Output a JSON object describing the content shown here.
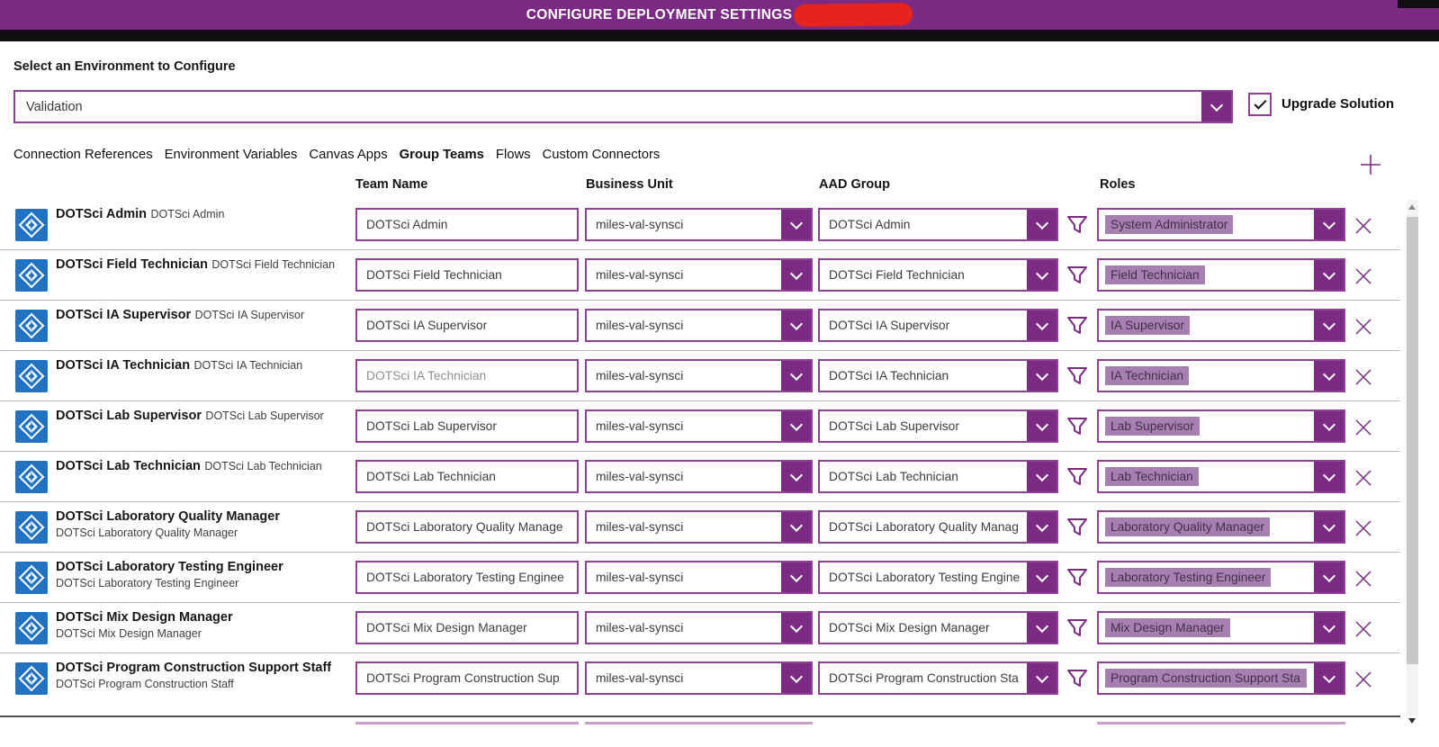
{
  "titlebar": {
    "title": "CONFIGURE DEPLOYMENT SETTINGS"
  },
  "environment": {
    "label": "Select an Environment to Configure",
    "value": "Validation",
    "upgrade_label": "Upgrade Solution",
    "upgrade_checked": true
  },
  "tabs": [
    {
      "label": "Connection References",
      "active": false
    },
    {
      "label": "Environment Variables",
      "active": false
    },
    {
      "label": "Canvas Apps",
      "active": false
    },
    {
      "label": "Group Teams",
      "active": true
    },
    {
      "label": "Flows",
      "active": false
    },
    {
      "label": "Custom Connectors",
      "active": false
    }
  ],
  "table": {
    "columns": {
      "team_name": "Team Name",
      "business_unit": "Business Unit",
      "aad_group": "AAD Group",
      "roles": "Roles"
    },
    "rows": [
      {
        "title": "DOTSci Admin",
        "subtitle": "DOTSci Admin",
        "team_name": "DOTSci Admin",
        "business_unit": "miles-val-synsci",
        "aad_group": "DOTSci Admin",
        "role": "System Administrator",
        "team_muted": false,
        "role_full": false
      },
      {
        "title": "DOTSci Field Technician",
        "subtitle": "DOTSci Field Technician",
        "team_name": "DOTSci Field Technician",
        "business_unit": "miles-val-synsci",
        "aad_group": "DOTSci Field Technician",
        "role": "Field Technician",
        "team_muted": false,
        "role_full": false
      },
      {
        "title": "DOTSci IA Supervisor",
        "subtitle": "DOTSci IA Supervisor",
        "team_name": "DOTSci IA Supervisor",
        "business_unit": "miles-val-synsci",
        "aad_group": "DOTSci IA Supervisor",
        "role": "IA Supervisor",
        "team_muted": false,
        "role_full": false
      },
      {
        "title": "DOTSci IA Technician",
        "subtitle": "DOTSci IA Technician",
        "team_name": "DOTSci IA Technician",
        "business_unit": "miles-val-synsci",
        "aad_group": "DOTSci IA Technician",
        "role": "IA Technician",
        "team_muted": true,
        "role_full": false
      },
      {
        "title": "DOTSci Lab Supervisor",
        "subtitle": "DOTSci Lab Supervisor",
        "team_name": "DOTSci Lab Supervisor",
        "business_unit": "miles-val-synsci",
        "aad_group": "DOTSci Lab Supervisor",
        "role": "Lab Supervisor",
        "team_muted": false,
        "role_full": false
      },
      {
        "title": "DOTSci Lab Technician",
        "subtitle": "DOTSci Lab Technician",
        "team_name": "DOTSci Lab Technician",
        "business_unit": "miles-val-synsci",
        "aad_group": "DOTSci Lab Technician",
        "role": "Lab Technician",
        "team_muted": false,
        "role_full": false
      },
      {
        "title": "DOTSci Laboratory Quality Manager",
        "subtitle": "DOTSci Laboratory Quality Manager",
        "team_name": "DOTSci Laboratory Quality Manage",
        "business_unit": "miles-val-synsci",
        "aad_group": "DOTSci Laboratory Quality Manag",
        "role": "Laboratory Quality Manager",
        "team_muted": false,
        "role_full": false
      },
      {
        "title": "DOTSci Laboratory Testing Engineer",
        "subtitle": "DOTSci Laboratory Testing Engineer",
        "team_name": "DOTSci Laboratory Testing Enginee",
        "business_unit": "miles-val-synsci",
        "aad_group": "DOTSci Laboratory Testing Engine",
        "role": "Laboratory Testing Engineer",
        "team_muted": false,
        "role_full": false
      },
      {
        "title": "DOTSci Mix Design Manager",
        "subtitle": "DOTSci Mix Design Manager",
        "team_name": "DOTSci Mix Design Manager",
        "business_unit": "miles-val-synsci",
        "aad_group": "DOTSci Mix Design Manager",
        "role": "Mix Design Manager",
        "team_muted": false,
        "role_full": false
      },
      {
        "title": "DOTSci Program Construction Support Staff",
        "subtitle": "DOTSci Program Construction Staff",
        "team_name": "DOTSci Program Construction Sup",
        "business_unit": "miles-val-synsci",
        "aad_group": "DOTSci Program Construction Sta",
        "role": "Program Construction Support Sta",
        "team_muted": false,
        "role_full": true
      }
    ]
  },
  "colors": {
    "accent": "#7c2b84",
    "field_border": "#8d4296",
    "role_chip_bg": "#a77fb0",
    "team_icon_blue": "#2173c2",
    "redaction_red": "#e5231f"
  }
}
